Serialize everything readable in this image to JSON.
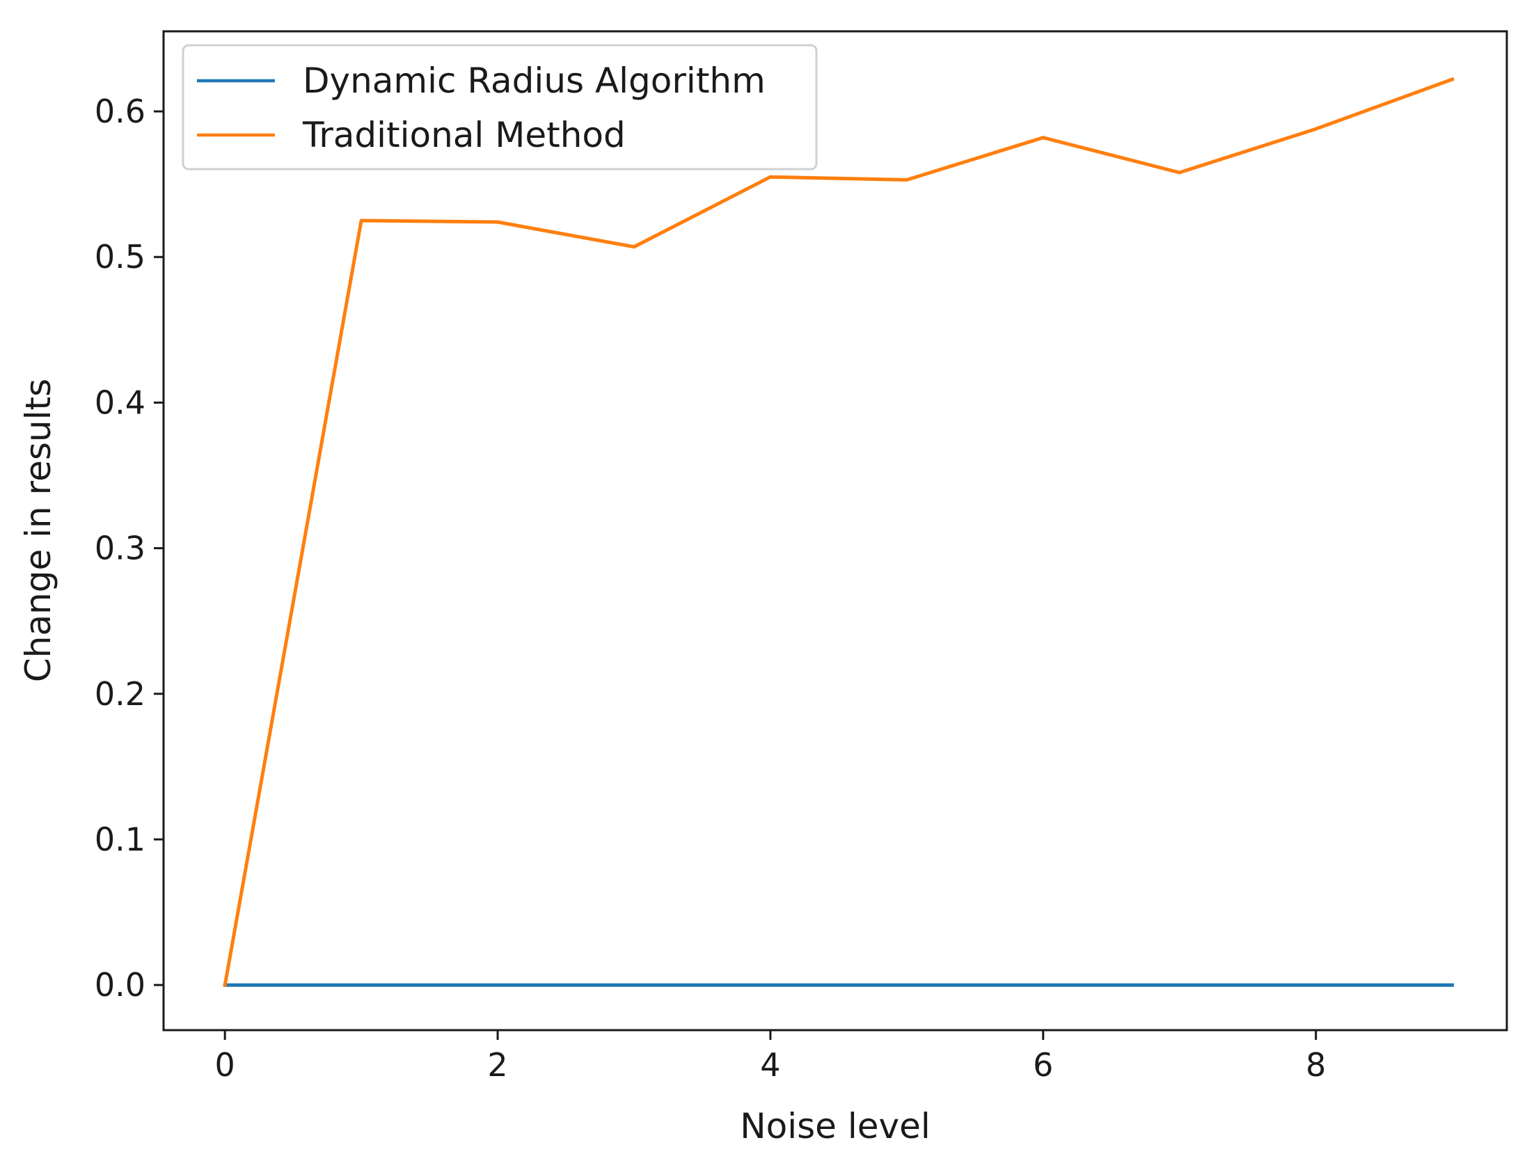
{
  "chart_data": {
    "type": "line",
    "title": "",
    "xlabel": "Noise level",
    "ylabel": "Change in results",
    "x": [
      0,
      1,
      2,
      3,
      4,
      5,
      6,
      7,
      8,
      9
    ],
    "xlim": [
      -0.45,
      9.4
    ],
    "ylim": [
      -0.031,
      0.655
    ],
    "xticks": [
      0,
      2,
      4,
      6,
      8
    ],
    "xtick_labels": [
      "0",
      "2",
      "4",
      "6",
      "8"
    ],
    "yticks": [
      0.0,
      0.1,
      0.2,
      0.3,
      0.4,
      0.5,
      0.6
    ],
    "ytick_labels": [
      "0.0",
      "0.1",
      "0.2",
      "0.3",
      "0.4",
      "0.5",
      "0.6"
    ],
    "grid": false,
    "legend_position": "top-left",
    "series": [
      {
        "name": "Dynamic Radius Algorithm",
        "color": "#1f77b4",
        "values": [
          0,
          0,
          0,
          0,
          0,
          0,
          0,
          0,
          0,
          0
        ]
      },
      {
        "name": "Traditional Method",
        "color": "#ff7f0e",
        "values": [
          0,
          0.525,
          0.524,
          0.507,
          0.555,
          0.553,
          0.582,
          0.558,
          0.588,
          0.622
        ]
      }
    ]
  }
}
